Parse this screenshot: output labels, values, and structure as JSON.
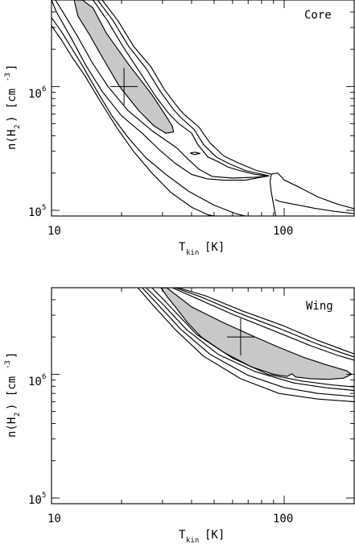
{
  "chart_data": [
    {
      "type": "contour",
      "panel_label": "Core",
      "xlabel": "T",
      "xlabel_sub": "kin",
      "xlabel_unit": "[K]",
      "ylabel_pre": "n(H",
      "ylabel_sub": "2",
      "ylabel_post": ") [cm",
      "ylabel_sup": "-3",
      "ylabel_end": "]",
      "x_scale": "log",
      "y_scale": "log",
      "xlim": [
        10,
        200
      ],
      "ylim": [
        90000,
        5000000
      ],
      "x_ticklabels": [
        "10",
        "100"
      ],
      "y_ticklabels": [
        {
          "base": "10",
          "exp": "5"
        },
        {
          "base": "10",
          "exp": "6"
        }
      ],
      "best_fit": {
        "T": 20.5,
        "n": 1000000
      },
      "contours": [
        {
          "level": "best",
          "filled": true,
          "points": [
            [
              13.6,
              5000000
            ],
            [
              15.1,
              4300000
            ],
            [
              17.2,
              2700000
            ],
            [
              21.5,
              1500000
            ],
            [
              27.0,
              860000
            ],
            [
              31.0,
              580000
            ],
            [
              33.0,
              480000
            ],
            [
              33.5,
              430000
            ],
            [
              31.0,
              420000
            ],
            [
              27.6,
              480000
            ],
            [
              23.7,
              640000
            ],
            [
              19.6,
              1000000
            ],
            [
              16.6,
              1700000
            ],
            [
              14.6,
              2600000
            ],
            [
              13.0,
              3700000
            ],
            [
              12.5,
              5000000
            ]
          ]
        },
        {
          "level": "island",
          "filled": false,
          "points": [
            [
              39.5,
              290000
            ],
            [
              41.3,
              295000
            ],
            [
              43.5,
              288000
            ],
            [
              41.0,
              282000
            ]
          ]
        },
        {
          "level": "c1-outer",
          "filled": false,
          "points": [
            [
              15.1,
              5000000
            ],
            [
              17.4,
              3400000
            ],
            [
              20.3,
              2100000
            ],
            [
              24.0,
              1300000
            ],
            [
              28.2,
              820000
            ],
            [
              32.0,
              600000
            ],
            [
              35.3,
              500000
            ],
            [
              40.0,
              420000
            ],
            [
              42.5,
              340000
            ],
            [
              47.0,
              270000
            ],
            [
              52.5,
              245000
            ],
            [
              57.0,
              225000
            ],
            [
              64.0,
              210000
            ],
            [
              75.0,
              195000
            ],
            [
              86.0,
              190000
            ],
            [
              75.0,
              185000
            ],
            [
              60.0,
              182000
            ],
            [
              49.0,
              188000
            ],
            [
              43.0,
              215000
            ],
            [
              38.5,
              260000
            ],
            [
              34.5,
              320000
            ],
            [
              31.5,
              360000
            ],
            [
              27.0,
              440000
            ],
            [
              21.3,
              640000
            ],
            [
              17.5,
              1000000
            ],
            [
              14.9,
              1580000
            ],
            [
              13.0,
              2500000
            ],
            [
              11.2,
              4000000
            ],
            [
              10.4,
              5000000
            ]
          ]
        },
        {
          "level": "c2-outer",
          "filled": false,
          "points": [
            [
              15.8,
              5000000
            ],
            [
              18.4,
              3400000
            ],
            [
              21.5,
              2100000
            ],
            [
              25.5,
              1400000
            ],
            [
              29.5,
              900000
            ],
            [
              33.5,
              650000
            ],
            [
              36.0,
              560000
            ],
            [
              41.0,
              450000
            ],
            [
              45.0,
              340000
            ],
            [
              51.0,
              270000
            ],
            [
              58.0,
              238000
            ],
            [
              68.0,
              210000
            ],
            [
              86.0,
              190000
            ],
            [
              68.0,
              175000
            ],
            [
              55.0,
              175000
            ],
            [
              46.5,
              180000
            ],
            [
              40.0,
              195000
            ],
            [
              34.0,
              240000
            ],
            [
              29.0,
              310000
            ],
            [
              24.5,
              420000
            ],
            [
              20.0,
              580000
            ],
            [
              16.6,
              900000
            ],
            [
              14.0,
              1500000
            ],
            [
              12.1,
              2500000
            ],
            [
              10.5,
              4000000
            ],
            [
              10.0,
              5000000
            ]
          ]
        },
        {
          "level": "c3-outer",
          "filled": false,
          "points": [
            [
              16.5,
              5000000
            ],
            [
              19.3,
              3400000
            ],
            [
              22.6,
              2100000
            ],
            [
              26.7,
              1450000
            ],
            [
              30.5,
              950000
            ],
            [
              34.5,
              700000
            ],
            [
              37.0,
              600000
            ],
            [
              43.0,
              470000
            ],
            [
              48.0,
              350000
            ],
            [
              55.0,
              275000
            ],
            [
              64.0,
              240000
            ],
            [
              76.0,
              210000
            ],
            [
              88.0,
              196000
            ],
            [
              94.0,
              200000
            ],
            [
              100.0,
              176000
            ],
            [
              115.0,
              155000
            ],
            [
              140.0,
              128000
            ],
            [
              170.0,
              112000
            ],
            [
              200.0,
              103000
            ]
          ]
        },
        {
          "level": "c3-inner",
          "filled": false,
          "points": [
            [
              10.0,
              3600000
            ],
            [
              11.0,
              2800000
            ],
            [
              12.1,
              2100000
            ],
            [
              13.5,
              1500000
            ],
            [
              15.8,
              900000
            ],
            [
              18.3,
              570000
            ],
            [
              21.5,
              380000
            ],
            [
              25.5,
              265000
            ],
            [
              31.0,
              195000
            ],
            [
              39.0,
              142000
            ],
            [
              50.0,
              110000
            ],
            [
              62.0,
              94000
            ],
            [
              68.0,
              90000
            ]
          ]
        },
        {
          "level": "c3-tail",
          "filled": false,
          "points": [
            [
              92.0,
              90000
            ],
            [
              90.5,
              105000
            ],
            [
              89.0,
              125000
            ],
            [
              88.0,
              140000
            ],
            [
              87.0,
              170000
            ],
            [
              88.0,
              196000
            ]
          ]
        },
        {
          "level": "c3-tail2",
          "filled": false,
          "points": [
            [
              200.0,
              94000
            ],
            [
              165.0,
              98000
            ],
            [
              135.0,
              104000
            ],
            [
              110.0,
              112000
            ],
            [
              95.5,
              118000
            ],
            [
              91.5,
              122000
            ]
          ]
        },
        {
          "level": "c4-outer",
          "filled": false,
          "points": [
            [
              10.0,
              3100000
            ],
            [
              11.0,
              2400000
            ],
            [
              12.2,
              1750000
            ],
            [
              14.0,
              1200000
            ],
            [
              16.2,
              760000
            ],
            [
              19.0,
              470000
            ],
            [
              22.5,
              300000
            ],
            [
              27.0,
              200000
            ],
            [
              32.5,
              140000
            ],
            [
              40.0,
              106000
            ],
            [
              47.0,
              92000
            ],
            [
              50.0,
              90000
            ]
          ]
        }
      ]
    },
    {
      "type": "contour",
      "panel_label": "Wing",
      "xlabel": "T",
      "xlabel_sub": "kin",
      "xlabel_unit": "[K]",
      "ylabel_pre": "n(H",
      "ylabel_sub": "2",
      "ylabel_post": ") [cm",
      "ylabel_sup": "-3",
      "ylabel_end": "]",
      "x_scale": "log",
      "y_scale": "log",
      "xlim": [
        10,
        200
      ],
      "ylim": [
        90000,
        5000000
      ],
      "x_ticklabels": [
        "10",
        "100"
      ],
      "y_ticklabels": [
        {
          "base": "10",
          "exp": "5"
        },
        {
          "base": "10",
          "exp": "6"
        }
      ],
      "best_fit": {
        "T": 65,
        "n": 2000000
      },
      "contours": [
        {
          "level": "best",
          "filled": true,
          "points": [
            [
              31.3,
              5000000
            ],
            [
              40.0,
              3500000
            ],
            [
              55.0,
              2600000
            ],
            [
              75.0,
              2000000
            ],
            [
              95.0,
              1650000
            ],
            [
              120.0,
              1380000
            ],
            [
              150.0,
              1200000
            ],
            [
              185.0,
              1070000
            ],
            [
              195.0,
              1000000
            ],
            [
              180.0,
              930000
            ],
            [
              155.0,
              910000
            ],
            [
              130.0,
              920000
            ],
            [
              112.0,
              950000
            ],
            [
              108.0,
              1010000
            ],
            [
              103.0,
              960000
            ],
            [
              90.0,
              1000000
            ],
            [
              72.0,
              1150000
            ],
            [
              55.0,
              1500000
            ],
            [
              44.0,
              2000000
            ],
            [
              38.5,
              2600000
            ],
            [
              34.5,
              3400000
            ],
            [
              31.5,
              4200000
            ],
            [
              29.5,
              5000000
            ]
          ]
        },
        {
          "level": "c1",
          "filled": false,
          "points": [
            [
              27.0,
              5000000
            ],
            [
              32.0,
              3600000
            ],
            [
              42.0,
              2100000
            ],
            [
              60.0,
              1350000
            ],
            [
              85.0,
              1000000
            ],
            [
              120.0,
              880000
            ],
            [
              160.0,
              820000
            ],
            [
              200.0,
              790000
            ]
          ]
        },
        {
          "level": "c1-upper",
          "filled": false,
          "points": [
            [
              33.0,
              5000000
            ],
            [
              42.0,
              4100000
            ],
            [
              60.0,
              3050000
            ],
            [
              90.0,
              2250000
            ],
            [
              130.0,
              1700000
            ],
            [
              170.0,
              1420000
            ],
            [
              200.0,
              1300000
            ]
          ]
        },
        {
          "level": "c2",
          "filled": false,
          "points": [
            [
              25.5,
              5000000
            ],
            [
              30.0,
              3700000
            ],
            [
              38.0,
              2300000
            ],
            [
              52.0,
              1450000
            ],
            [
              75.0,
              1050000
            ],
            [
              110.0,
              850000
            ],
            [
              150.0,
              780000
            ],
            [
              200.0,
              740000
            ]
          ]
        },
        {
          "level": "c2-upper",
          "filled": false,
          "points": [
            [
              34.0,
              5000000
            ],
            [
              44.0,
              4200000
            ],
            [
              63.0,
              3150000
            ],
            [
              95.0,
              2350000
            ],
            [
              135.0,
              1790000
            ],
            [
              175.0,
              1500000
            ],
            [
              200.0,
              1380000
            ]
          ]
        },
        {
          "level": "c3",
          "filled": false,
          "points": [
            [
              24.5,
              5000000
            ],
            [
              28.5,
              3700000
            ],
            [
              36.0,
              2300000
            ],
            [
              48.0,
              1450000
            ],
            [
              70.0,
              980000
            ],
            [
              100.0,
              780000
            ],
            [
              140.0,
              700000
            ],
            [
              200.0,
              660000
            ]
          ]
        },
        {
          "level": "c3-upper",
          "filled": false,
          "points": [
            [
              35.0,
              5000000
            ],
            [
              46.0,
              4300000
            ],
            [
              66.0,
              3250000
            ],
            [
              100.0,
              2450000
            ],
            [
              140.0,
              1870000
            ],
            [
              180.0,
              1570000
            ],
            [
              200.0,
              1460000
            ]
          ]
        },
        {
          "level": "c4",
          "filled": false,
          "points": [
            [
              23.5,
              5000000
            ],
            [
              27.0,
              3700000
            ],
            [
              34.0,
              2300000
            ],
            [
              45.0,
              1400000
            ],
            [
              65.0,
              920000
            ],
            [
              95.0,
              700000
            ],
            [
              140.0,
              630000
            ],
            [
              200.0,
              600000
            ]
          ]
        }
      ]
    }
  ]
}
